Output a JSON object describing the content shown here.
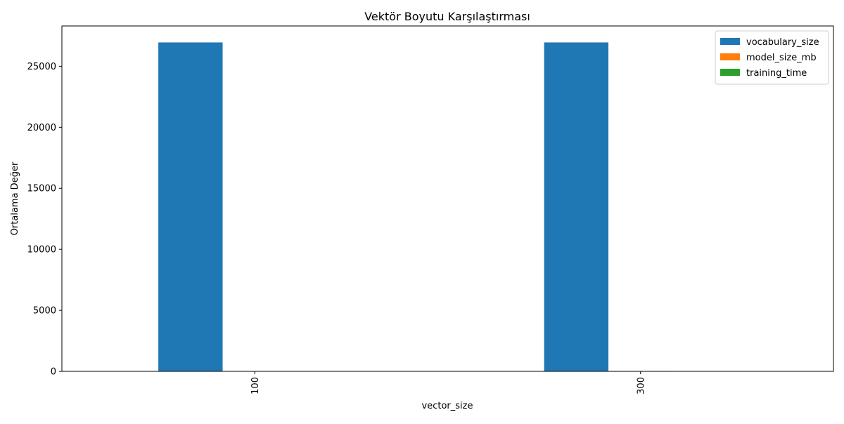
{
  "chart_data": {
    "type": "bar",
    "title": "Vektör Boyutu Karşılaştırması",
    "xlabel": "vector_size",
    "ylabel": "Ortalama Değer",
    "categories": [
      "100",
      "300"
    ],
    "series": [
      {
        "name": "vocabulary_size",
        "color": "#1f77b4",
        "values": [
          26950,
          26950
        ]
      },
      {
        "name": "model_size_mb",
        "color": "#ff7f0e",
        "values": [
          11,
          32
        ]
      },
      {
        "name": "training_time",
        "color": "#2ca02c",
        "values": [
          3,
          6
        ]
      }
    ],
    "ylim": [
      0,
      28300
    ],
    "yticks": [
      0,
      5000,
      10000,
      15000,
      20000,
      25000
    ],
    "grid": false,
    "legend": "top-right"
  }
}
